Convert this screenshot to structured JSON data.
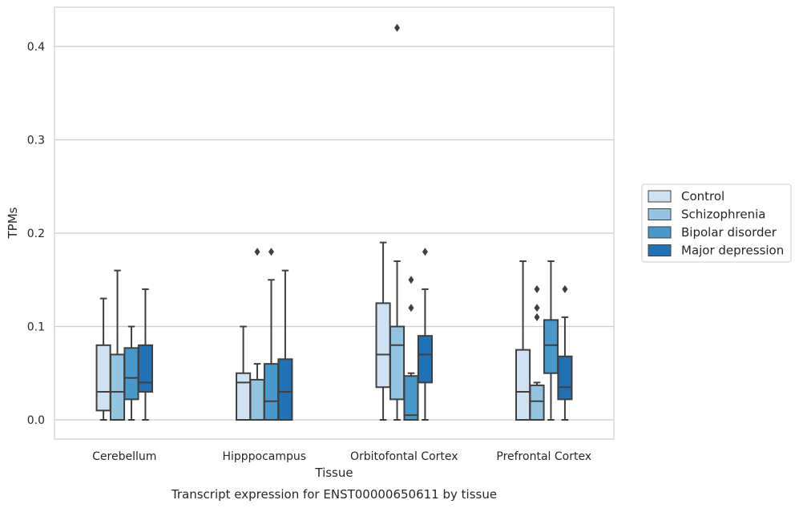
{
  "caption": "Transcript expression for ENST00000650611 by tissue",
  "chart_data": {
    "type": "boxplot",
    "xlabel": "Tissue",
    "ylabel": "TPMs",
    "ylim": [
      -0.02,
      0.44
    ],
    "yticks": [
      0.0,
      0.1,
      0.2,
      0.3,
      0.4
    ],
    "ytick_labels": [
      "0.0",
      "0.1",
      "0.2",
      "0.3",
      "0.4"
    ],
    "grid": "horizontal",
    "legend_position": "right",
    "categories": [
      "Cerebellum",
      "Hipppocampus",
      "Orbitofontal Cortex",
      "Prefrontal Cortex"
    ],
    "series": [
      {
        "name": "Control",
        "color": "#d0e1f2",
        "boxes": [
          {
            "whisker_low": 0.0,
            "q1": 0.01,
            "median": 0.03,
            "q3": 0.08,
            "whisker_high": 0.13,
            "outliers": []
          },
          {
            "whisker_low": 0.0,
            "q1": 0.0,
            "median": 0.04,
            "q3": 0.05,
            "whisker_high": 0.1,
            "outliers": []
          },
          {
            "whisker_low": 0.0,
            "q1": 0.035,
            "median": 0.07,
            "q3": 0.125,
            "whisker_high": 0.19,
            "outliers": []
          },
          {
            "whisker_low": 0.0,
            "q1": 0.0,
            "median": 0.03,
            "q3": 0.075,
            "whisker_high": 0.17,
            "outliers": []
          }
        ]
      },
      {
        "name": "Schizophrenia",
        "color": "#94c4df",
        "boxes": [
          {
            "whisker_low": 0.0,
            "q1": 0.0,
            "median": 0.03,
            "q3": 0.07,
            "whisker_high": 0.16,
            "outliers": []
          },
          {
            "whisker_low": 0.0,
            "q1": 0.0,
            "median": 0.0,
            "q3": 0.043,
            "whisker_high": 0.06,
            "outliers": [
              0.18
            ]
          },
          {
            "whisker_low": 0.0,
            "q1": 0.022,
            "median": 0.08,
            "q3": 0.1,
            "whisker_high": 0.17,
            "outliers": [
              0.42
            ]
          },
          {
            "whisker_low": 0.0,
            "q1": 0.0,
            "median": 0.02,
            "q3": 0.037,
            "whisker_high": 0.04,
            "outliers": [
              0.11,
              0.12,
              0.14
            ]
          }
        ]
      },
      {
        "name": "Bipolar disorder",
        "color": "#4a98c9",
        "boxes": [
          {
            "whisker_low": 0.0,
            "q1": 0.022,
            "median": 0.045,
            "q3": 0.077,
            "whisker_high": 0.1,
            "outliers": []
          },
          {
            "whisker_low": 0.0,
            "q1": 0.0,
            "median": 0.02,
            "q3": 0.06,
            "whisker_high": 0.15,
            "outliers": [
              0.18
            ]
          },
          {
            "whisker_low": 0.0,
            "q1": 0.0,
            "median": 0.005,
            "q3": 0.047,
            "whisker_high": 0.05,
            "outliers": [
              0.12,
              0.15
            ]
          },
          {
            "whisker_low": 0.0,
            "q1": 0.05,
            "median": 0.08,
            "q3": 0.107,
            "whisker_high": 0.17,
            "outliers": []
          }
        ]
      },
      {
        "name": "Major depression",
        "color": "#2171b5",
        "boxes": [
          {
            "whisker_low": 0.0,
            "q1": 0.03,
            "median": 0.04,
            "q3": 0.08,
            "whisker_high": 0.14,
            "outliers": []
          },
          {
            "whisker_low": 0.0,
            "q1": 0.0,
            "median": 0.03,
            "q3": 0.065,
            "whisker_high": 0.16,
            "outliers": []
          },
          {
            "whisker_low": 0.0,
            "q1": 0.04,
            "median": 0.07,
            "q3": 0.09,
            "whisker_high": 0.14,
            "outliers": [
              0.18
            ]
          },
          {
            "whisker_low": 0.0,
            "q1": 0.022,
            "median": 0.035,
            "q3": 0.068,
            "whisker_high": 0.11,
            "outliers": [
              0.14
            ]
          }
        ]
      }
    ]
  }
}
